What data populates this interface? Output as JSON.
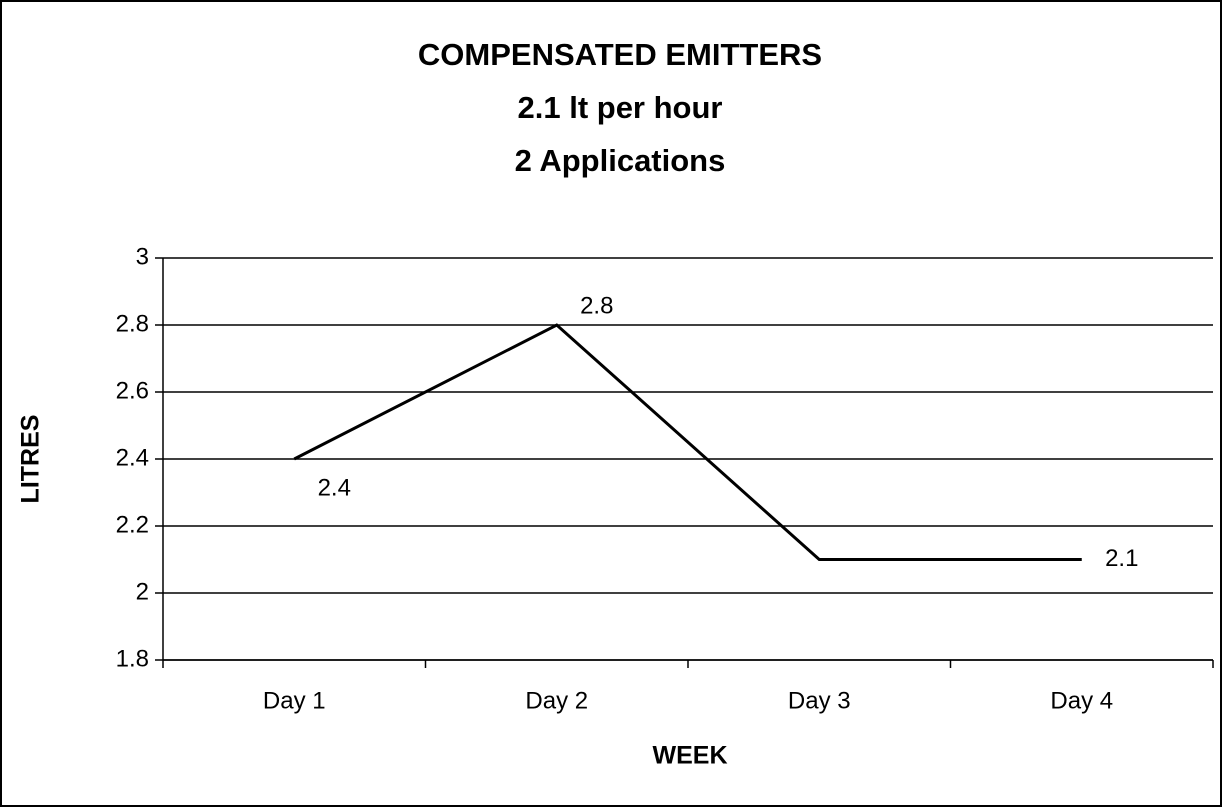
{
  "chart_data": {
    "type": "line",
    "title": [
      "COMPENSATED EMITTERS",
      "2.1 lt per hour",
      "2 Applications"
    ],
    "x_label": "WEEK",
    "y_label": "LITRES",
    "categories": [
      "Day 1",
      "Day 2",
      "Day 3",
      "Day 4"
    ],
    "values": [
      2.4,
      2.8,
      2.1,
      2.1
    ],
    "value_labels": [
      "2.4",
      "2.8",
      null,
      "2.1"
    ],
    "color": "#000000",
    "ylim": [
      1.8,
      3
    ],
    "yticks": [
      1.8,
      2,
      2.2,
      2.4,
      2.6,
      2.8,
      3
    ],
    "grid": true
  }
}
